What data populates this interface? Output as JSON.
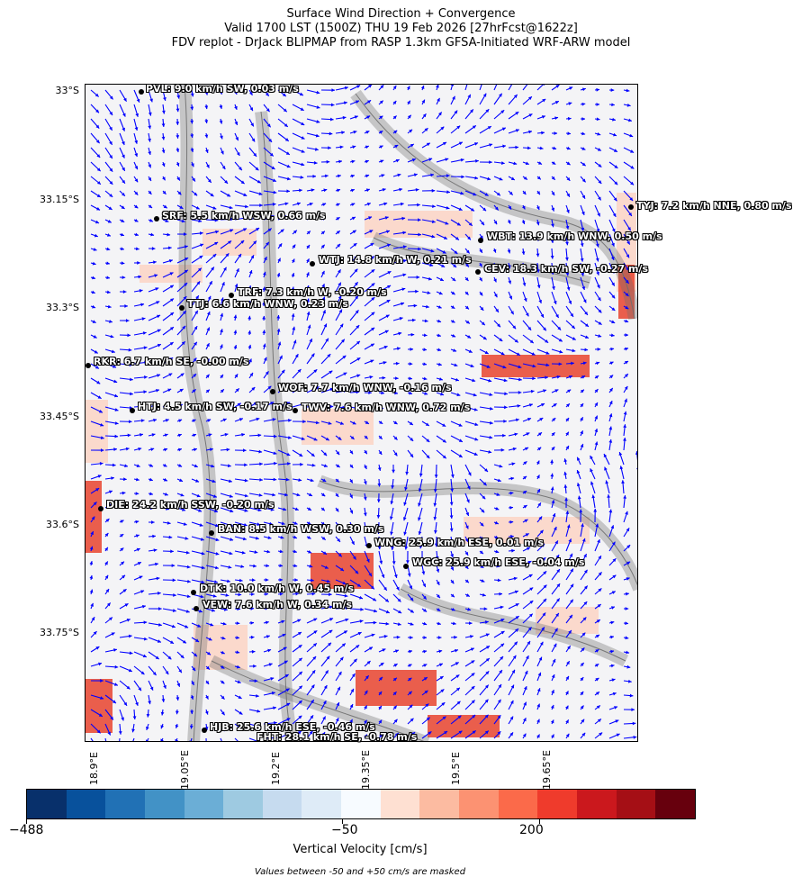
{
  "title": {
    "line1": "Surface Wind Direction + Convergence",
    "line2": "Valid 1700 LST (1500Z) THU 19 Feb 2026 [27hrFcst@1622z]",
    "line3": "FDV replot - DrJack BLIPMAP from RASP 1.3km GFSA-Initiated WRF-ARW model"
  },
  "y_axis_ticks": [
    "33°S",
    "33.15°S",
    "33.3°S",
    "33.45°S",
    "33.6°S",
    "33.75°S"
  ],
  "x_axis_ticks": [
    "18.9°E",
    "19.05°E",
    "19.2°E",
    "19.35°E",
    "19.5°E",
    "19.65°E"
  ],
  "stations": [
    {
      "text": "PVL: 9.0 km/h SW, 0.03 m/s"
    },
    {
      "text": "SRF: 5.5 km/h WSW, 0.66 m/s"
    },
    {
      "text": "TYJ: 7.2 km/h NNE, 0.80 m/s"
    },
    {
      "text": "WBT: 13.9 km/h WNW, 0.50 m/s"
    },
    {
      "text": "WTJ: 14.8 km/h W, 0.21 m/s"
    },
    {
      "text": "CEV: 18.3 km/h SW, -0.27 m/s"
    },
    {
      "text": "TRF: 7.3 km/h W, -0.20 m/s"
    },
    {
      "text": "TTJ: 6.6 km/h WNW, 0.23 m/s"
    },
    {
      "text": "RKR: 6.7 km/h SE, -0.00 m/s"
    },
    {
      "text": "WOF: 7.7 km/h WNW, -0.16 m/s"
    },
    {
      "text": "HTJ: 4.5 km/h SW, -0.17 m/s"
    },
    {
      "text": "TWV: 7.6 km/h WNW, 0.72 m/s"
    },
    {
      "text": "DIE: 24.2 km/h SSW, -0.20 m/s"
    },
    {
      "text": "BAN: 8.5 km/h WSW, 0.30 m/s"
    },
    {
      "text": "WNG: 25.9 km/h ESE, 0.01 m/s"
    },
    {
      "text": "WGC: 25.9 km/h ESE, -0.04 m/s"
    },
    {
      "text": "DTK: 10.0 km/h W, 0.45 m/s"
    },
    {
      "text": "VEW: 7.6 km/h W, 0.34 m/s"
    },
    {
      "text": "HJB: 25.6 km/h ESE, -0.46 m/s"
    },
    {
      "text": "FHT: 28.1 km/h SE, -0.78 m/s"
    }
  ],
  "colorbar": {
    "colors": [
      "#08306b",
      "#08519c",
      "#2171b5",
      "#4292c6",
      "#6baed6",
      "#9ecae1",
      "#c6dbef",
      "#deebf7",
      "#f7fbff",
      "#fee0d2",
      "#fcbba1",
      "#fc9272",
      "#fb6a4a",
      "#ef3b2c",
      "#cb181d",
      "#a50f15",
      "#67000d"
    ],
    "tick_labels": [
      "−488",
      "−50",
      "200"
    ],
    "label": "Vertical Velocity [cm/s]",
    "note": "Values between -50 and +50 cm/s are masked"
  },
  "colors": {
    "wind_vectors": "#0000ff",
    "terrain_contours": "#6e6e6e",
    "convergence_high": "#e8432e",
    "convergence_low": "#fcd3c4"
  }
}
